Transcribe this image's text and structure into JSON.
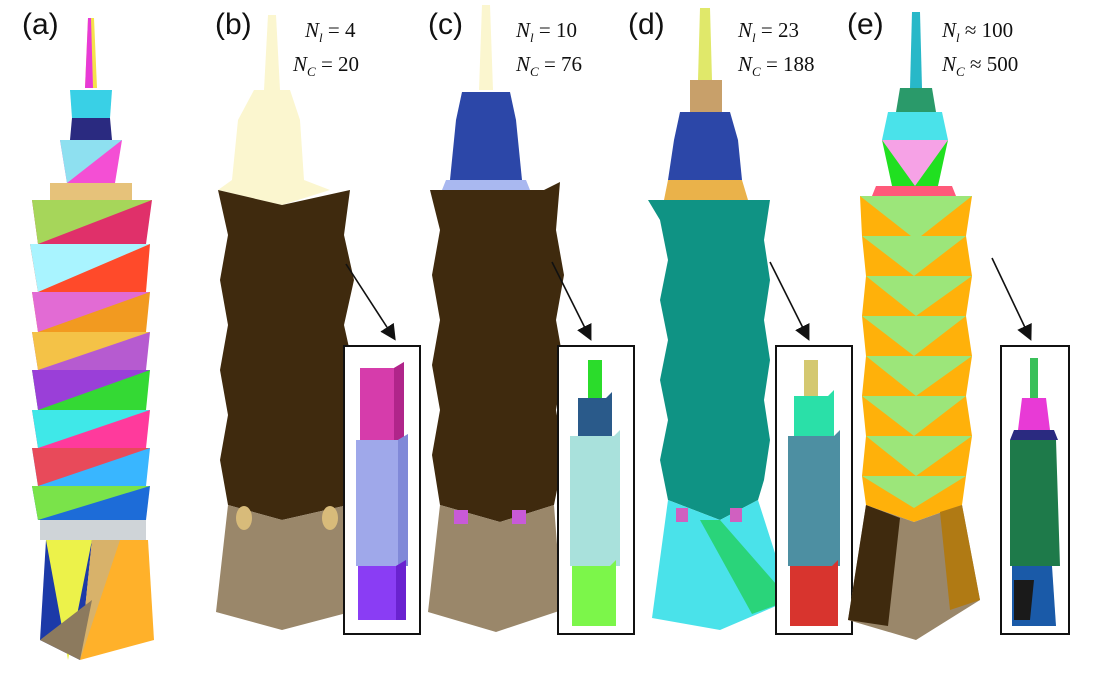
{
  "panels": [
    {
      "letter": "(a)"
    },
    {
      "letter": "(b)",
      "nl": "4",
      "nc": "20",
      "rel": "="
    },
    {
      "letter": "(c)",
      "nl": "10",
      "nc": "76",
      "rel": "="
    },
    {
      "letter": "(d)",
      "nl": "23",
      "nc": "188",
      "rel": "="
    },
    {
      "letter": "(e)",
      "nl": "100",
      "nc": "500",
      "rel": "≈"
    }
  ],
  "colors": {
    "dark_brown": "#3f2a0e",
    "base_tan": "#9a876a",
    "cream": "#fbf6cf",
    "royal_blue": "#2c47a8",
    "teal": "#0f9384",
    "cyan": "#4ae2ea",
    "orange": "#ffb10a",
    "green": "#20e020"
  }
}
